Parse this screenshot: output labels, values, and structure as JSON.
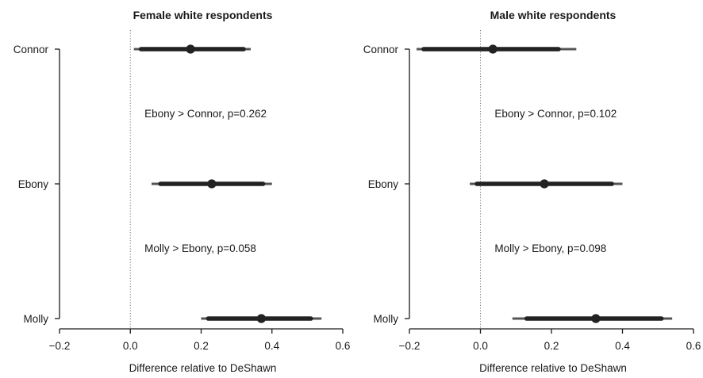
{
  "chart_data": [
    {
      "type": "scatter",
      "title": "Female white respondents",
      "xlabel": "Difference relative to DeShawn",
      "ylabel": "",
      "xlim": [
        -0.2,
        0.6
      ],
      "xticks": [
        -0.2,
        0.0,
        0.2,
        0.4,
        0.6
      ],
      "xtick_labels": [
        "−0.2",
        "0.0",
        "0.2",
        "0.4",
        "0.6"
      ],
      "reference_line": 0,
      "categories": [
        "Connor",
        "Ebony",
        "Molly"
      ],
      "points": [
        {
          "label": "Connor",
          "estimate": 0.17,
          "ci_inner": [
            0.03,
            0.32
          ],
          "ci_outer": [
            0.01,
            0.34
          ]
        },
        {
          "label": "Ebony",
          "estimate": 0.23,
          "ci_inner": [
            0.085,
            0.375
          ],
          "ci_outer": [
            0.06,
            0.4
          ]
        },
        {
          "label": "Molly",
          "estimate": 0.37,
          "ci_inner": [
            0.22,
            0.51
          ],
          "ci_outer": [
            0.2,
            0.54
          ]
        }
      ],
      "annotations": [
        {
          "text": "Ebony > Connor, p=0.262",
          "between": [
            "Connor",
            "Ebony"
          ]
        },
        {
          "text": "Molly > Ebony, p=0.058",
          "between": [
            "Ebony",
            "Molly"
          ]
        }
      ],
      "grid": false,
      "legend": "none"
    },
    {
      "type": "scatter",
      "title": "Male white respondents",
      "xlabel": "Difference relative to DeShawn",
      "ylabel": "",
      "xlim": [
        -0.2,
        0.6
      ],
      "xticks": [
        -0.2,
        0.0,
        0.2,
        0.4,
        0.6
      ],
      "xtick_labels": [
        "−0.2",
        "0.0",
        "0.2",
        "0.4",
        "0.6"
      ],
      "reference_line": 0,
      "categories": [
        "Connor",
        "Ebony",
        "Molly"
      ],
      "points": [
        {
          "label": "Connor",
          "estimate": 0.035,
          "ci_inner": [
            -0.16,
            0.22
          ],
          "ci_outer": [
            -0.18,
            0.27
          ]
        },
        {
          "label": "Ebony",
          "estimate": 0.18,
          "ci_inner": [
            -0.01,
            0.37
          ],
          "ci_outer": [
            -0.03,
            0.4
          ]
        },
        {
          "label": "Molly",
          "estimate": 0.325,
          "ci_inner": [
            0.13,
            0.51
          ],
          "ci_outer": [
            0.09,
            0.54
          ]
        }
      ],
      "annotations": [
        {
          "text": "Ebony > Connor, p=0.102",
          "between": [
            "Connor",
            "Ebony"
          ]
        },
        {
          "text": "Molly > Ebony, p=0.098",
          "between": [
            "Ebony",
            "Molly"
          ]
        }
      ],
      "grid": false,
      "legend": "none"
    }
  ],
  "colors": {
    "estimate": "#222222",
    "ci_inner": "#222222",
    "ci_outer": "#555555",
    "axis": "#1a1a1a",
    "reference_line": "#777777"
  }
}
